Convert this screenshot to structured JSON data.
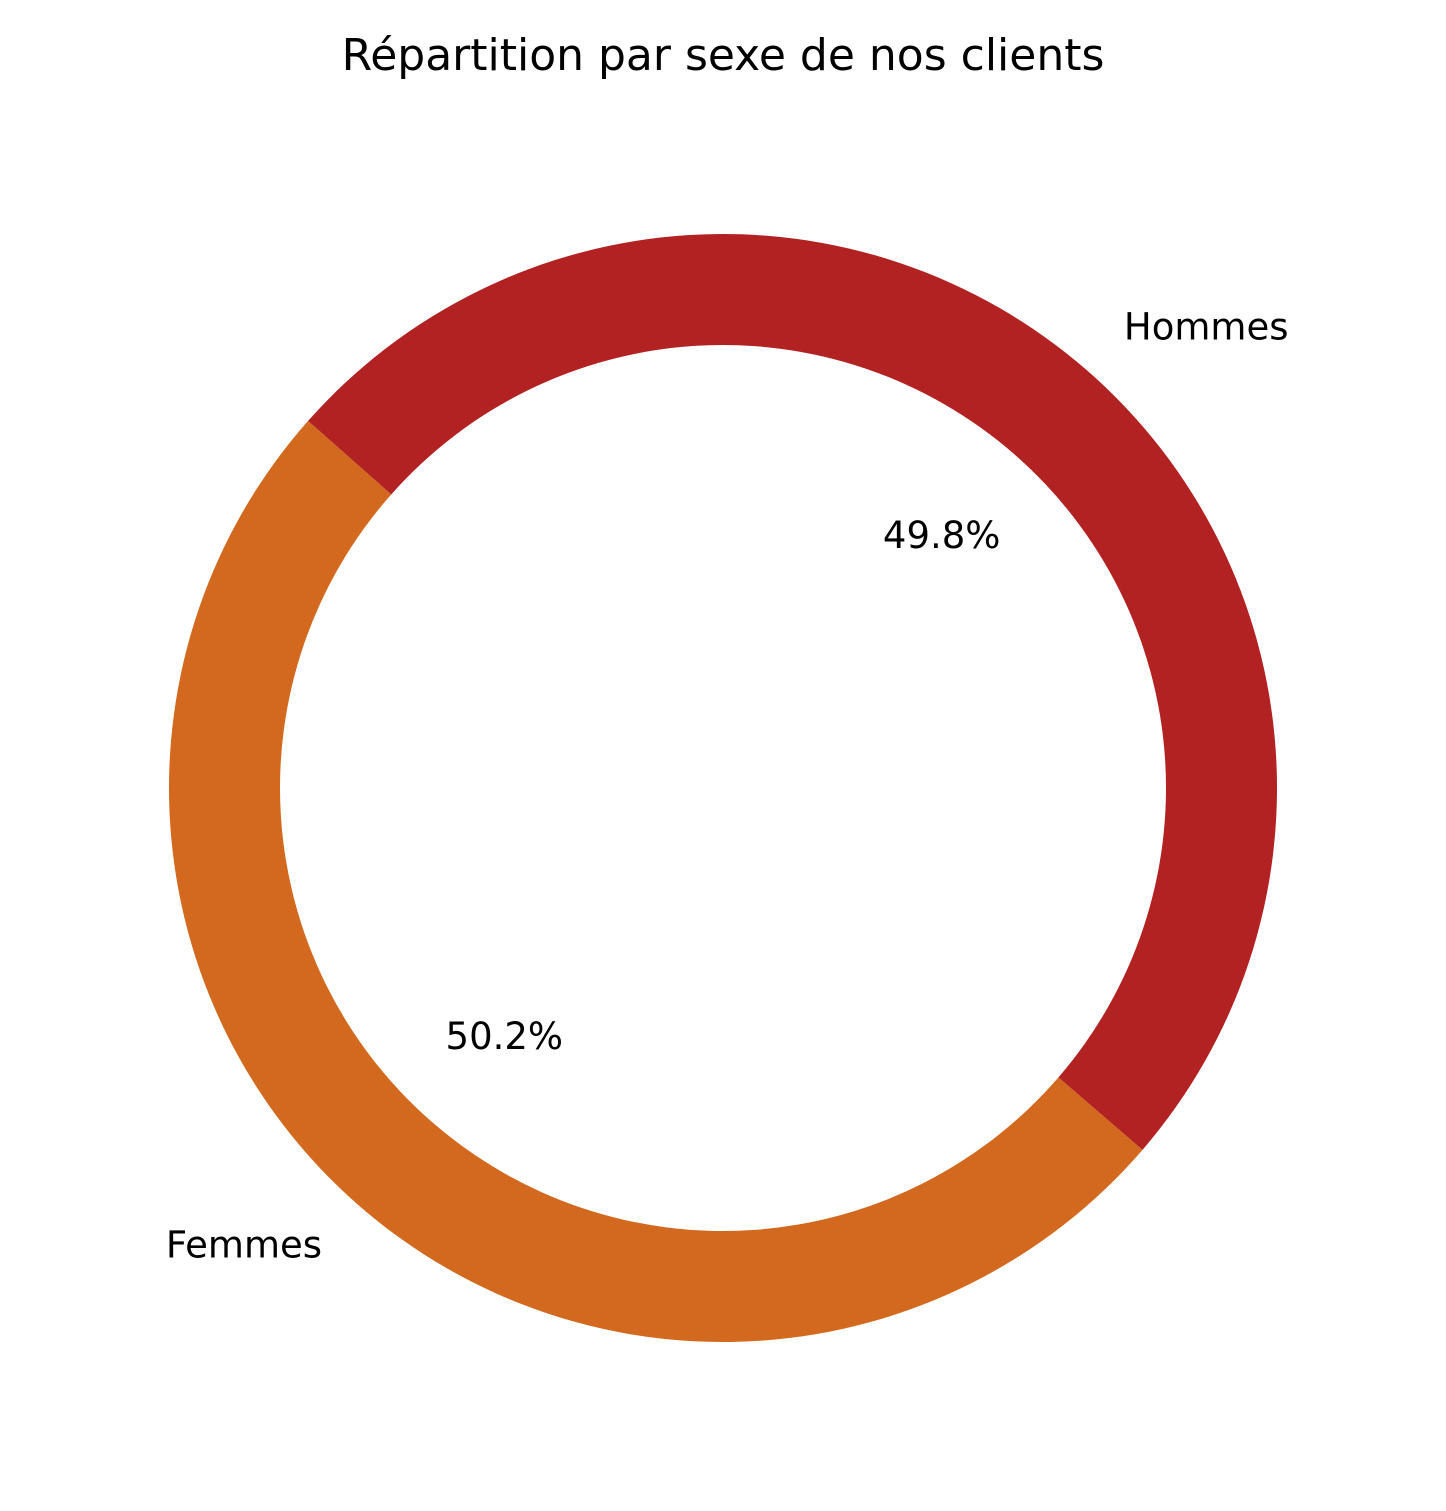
{
  "chart_data": {
    "type": "pie",
    "style": "donut",
    "title": "Répartition par sexe de nos clients",
    "categories": [
      "Femmes",
      "Hommes"
    ],
    "values": [
      50.2,
      49.8
    ],
    "value_labels": [
      "50.2%",
      "49.8%"
    ],
    "colors": [
      "#d2691f",
      "#b22222"
    ],
    "legend": "none"
  }
}
